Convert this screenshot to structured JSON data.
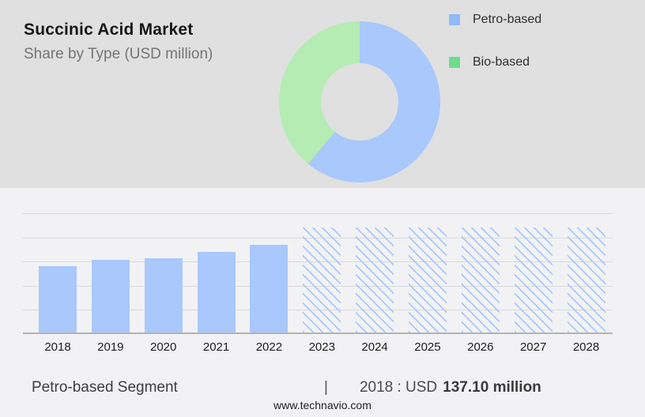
{
  "header": {
    "title": "Succinic Acid Market",
    "subtitle": "Share by Type (USD million)"
  },
  "legend": {
    "items": [
      {
        "label": "Petro-based",
        "swatch_color": "#90b9f7"
      },
      {
        "label": "Bio-based",
        "swatch_color": "#6edc8b"
      }
    ]
  },
  "chart_data": [
    {
      "type": "pie",
      "variant": "donut",
      "title": "Share by Type (USD million)",
      "slices": [
        {
          "label": "Petro-based",
          "percent": 61,
          "color": "#a9c8fb"
        },
        {
          "label": "Bio-based",
          "percent": 39,
          "color": "#b5ecb3"
        }
      ],
      "start_angle_deg": 0,
      "direction": "clockwise",
      "legend_position": "right"
    },
    {
      "type": "bar",
      "title": "Succinic Acid Market size by year (USD million)",
      "categories": [
        "2018",
        "2019",
        "2020",
        "2021",
        "2022",
        "2023",
        "2024",
        "2025",
        "2026",
        "2027",
        "2028"
      ],
      "values": [
        137.1,
        150,
        153,
        166,
        181,
        218,
        218,
        218,
        218,
        218,
        218
      ],
      "forecast_start_index": 5,
      "historical_style": "solid",
      "forecast_style": "diagonal-hatch",
      "xlabel": "",
      "ylabel": "",
      "ylim": [
        0,
        250
      ],
      "gridline_step": 50,
      "grid": true,
      "y_axis_labels_shown": false
    }
  ],
  "footer": {
    "segment_label": "Petro-based Segment",
    "separator": "|",
    "value_prefix": "2018 : USD",
    "value_bold": "137.10 million",
    "website": "www.technavio.com"
  },
  "colors": {
    "top_panel_bg": "#e0e0e1",
    "bottom_panel_bg": "#f2f2f4",
    "bar_fill": "#a9c8fb",
    "donut_petro": "#a9c8fb",
    "donut_bio": "#b5ecb3",
    "gridline": "#d9d9db",
    "axis_line": "#b3b3b6"
  }
}
